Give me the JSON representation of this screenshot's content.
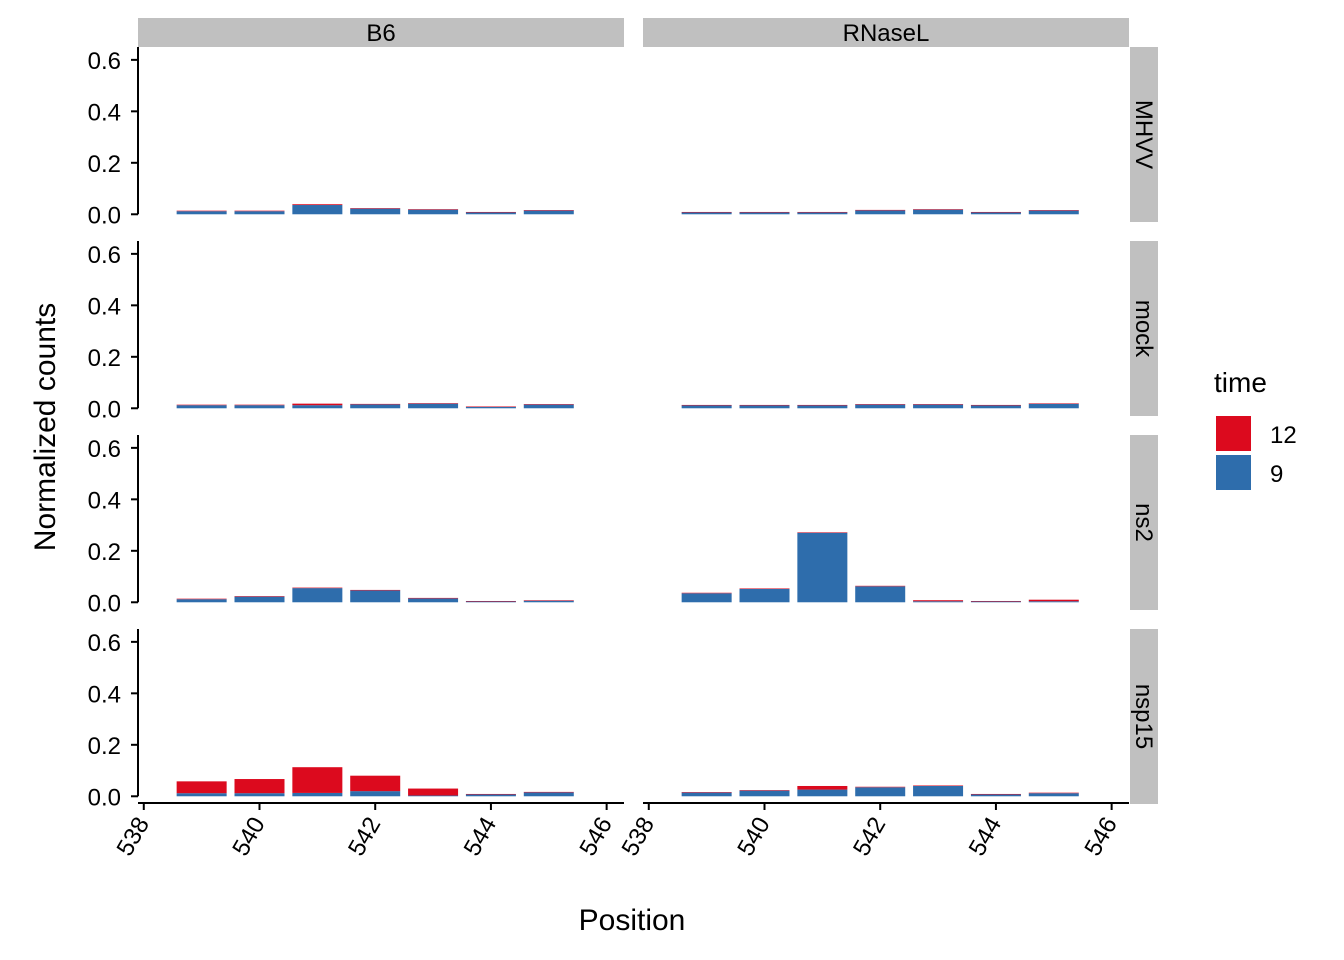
{
  "chart_data": {
    "type": "bar",
    "stacked": true,
    "facets": {
      "columns": [
        "B6",
        "RNaseL"
      ],
      "rows": [
        "MHVV",
        "mock",
        "ns2",
        "nsp15"
      ]
    },
    "xlabel": "Position",
    "ylabel": "Normalized counts",
    "xlim": [
      537.9,
      546.3
    ],
    "ylim": [
      -0.03,
      0.65
    ],
    "x_ticks": [
      538,
      540,
      542,
      544,
      546
    ],
    "x_tick_labels": [
      "538",
      "540",
      "542",
      "544",
      "546"
    ],
    "y_ticks": [
      0.0,
      0.2,
      0.4,
      0.6
    ],
    "y_tick_labels": [
      "0.0",
      "0.2",
      "0.4",
      "0.6"
    ],
    "x_tick_angle": 60,
    "positions": [
      539,
      540,
      541,
      542,
      543,
      544,
      545
    ],
    "legend": {
      "title": "time",
      "placement": "right",
      "entries": [
        {
          "label": "12",
          "color": "#DC0A1E"
        },
        {
          "label": "9",
          "color": "#2E6DAC"
        }
      ]
    },
    "grid": false,
    "panels": [
      {
        "column": "B6",
        "row": "MHVV",
        "series": [
          {
            "name": "9",
            "values": [
              0.012,
              0.012,
              0.036,
              0.022,
              0.018,
              0.008,
              0.015
            ]
          },
          {
            "name": "12",
            "values": [
              0.002,
              0.002,
              0.003,
              0.002,
              0.002,
              0.001,
              0.001
            ]
          }
        ]
      },
      {
        "column": "RNaseL",
        "row": "MHVV",
        "series": [
          {
            "name": "9",
            "values": [
              0.008,
              0.008,
              0.008,
              0.015,
              0.018,
              0.008,
              0.015
            ]
          },
          {
            "name": "12",
            "values": [
              0.001,
              0.001,
              0.001,
              0.002,
              0.002,
              0.001,
              0.001
            ]
          }
        ]
      },
      {
        "column": "B6",
        "row": "mock",
        "series": [
          {
            "name": "9",
            "values": [
              0.012,
              0.012,
              0.012,
              0.015,
              0.018,
              0.006,
              0.015
            ]
          },
          {
            "name": "12",
            "values": [
              0.002,
              0.002,
              0.006,
              0.002,
              0.002,
              0.001,
              0.001
            ]
          }
        ]
      },
      {
        "column": "RNaseL",
        "row": "mock",
        "series": [
          {
            "name": "9",
            "values": [
              0.012,
              0.012,
              0.012,
              0.015,
              0.015,
              0.012,
              0.018
            ]
          },
          {
            "name": "12",
            "values": [
              0.001,
              0.001,
              0.001,
              0.001,
              0.001,
              0.001,
              0.001
            ]
          }
        ]
      },
      {
        "column": "B6",
        "row": "ns2",
        "series": [
          {
            "name": "9",
            "values": [
              0.012,
              0.022,
              0.055,
              0.046,
              0.015,
              0.004,
              0.006
            ]
          },
          {
            "name": "12",
            "values": [
              0.002,
              0.002,
              0.002,
              0.002,
              0.002,
              0.001,
              0.002
            ]
          }
        ]
      },
      {
        "column": "RNaseL",
        "row": "ns2",
        "series": [
          {
            "name": "9",
            "values": [
              0.035,
              0.052,
              0.27,
              0.062,
              0.004,
              0.003,
              0.004
            ]
          },
          {
            "name": "12",
            "values": [
              0.002,
              0.002,
              0.002,
              0.002,
              0.004,
              0.002,
              0.006
            ]
          }
        ]
      },
      {
        "column": "B6",
        "row": "nsp15",
        "series": [
          {
            "name": "9",
            "values": [
              0.012,
              0.012,
              0.013,
              0.02,
              0.003,
              0.008,
              0.015
            ]
          },
          {
            "name": "12",
            "values": [
              0.046,
              0.055,
              0.1,
              0.06,
              0.027,
              0.001,
              0.002
            ]
          }
        ]
      },
      {
        "column": "RNaseL",
        "row": "nsp15",
        "series": [
          {
            "name": "9",
            "values": [
              0.015,
              0.022,
              0.026,
              0.035,
              0.04,
              0.008,
              0.012
            ]
          },
          {
            "name": "12",
            "values": [
              0.001,
              0.002,
              0.014,
              0.002,
              0.002,
              0.001,
              0.002
            ]
          }
        ]
      }
    ]
  }
}
